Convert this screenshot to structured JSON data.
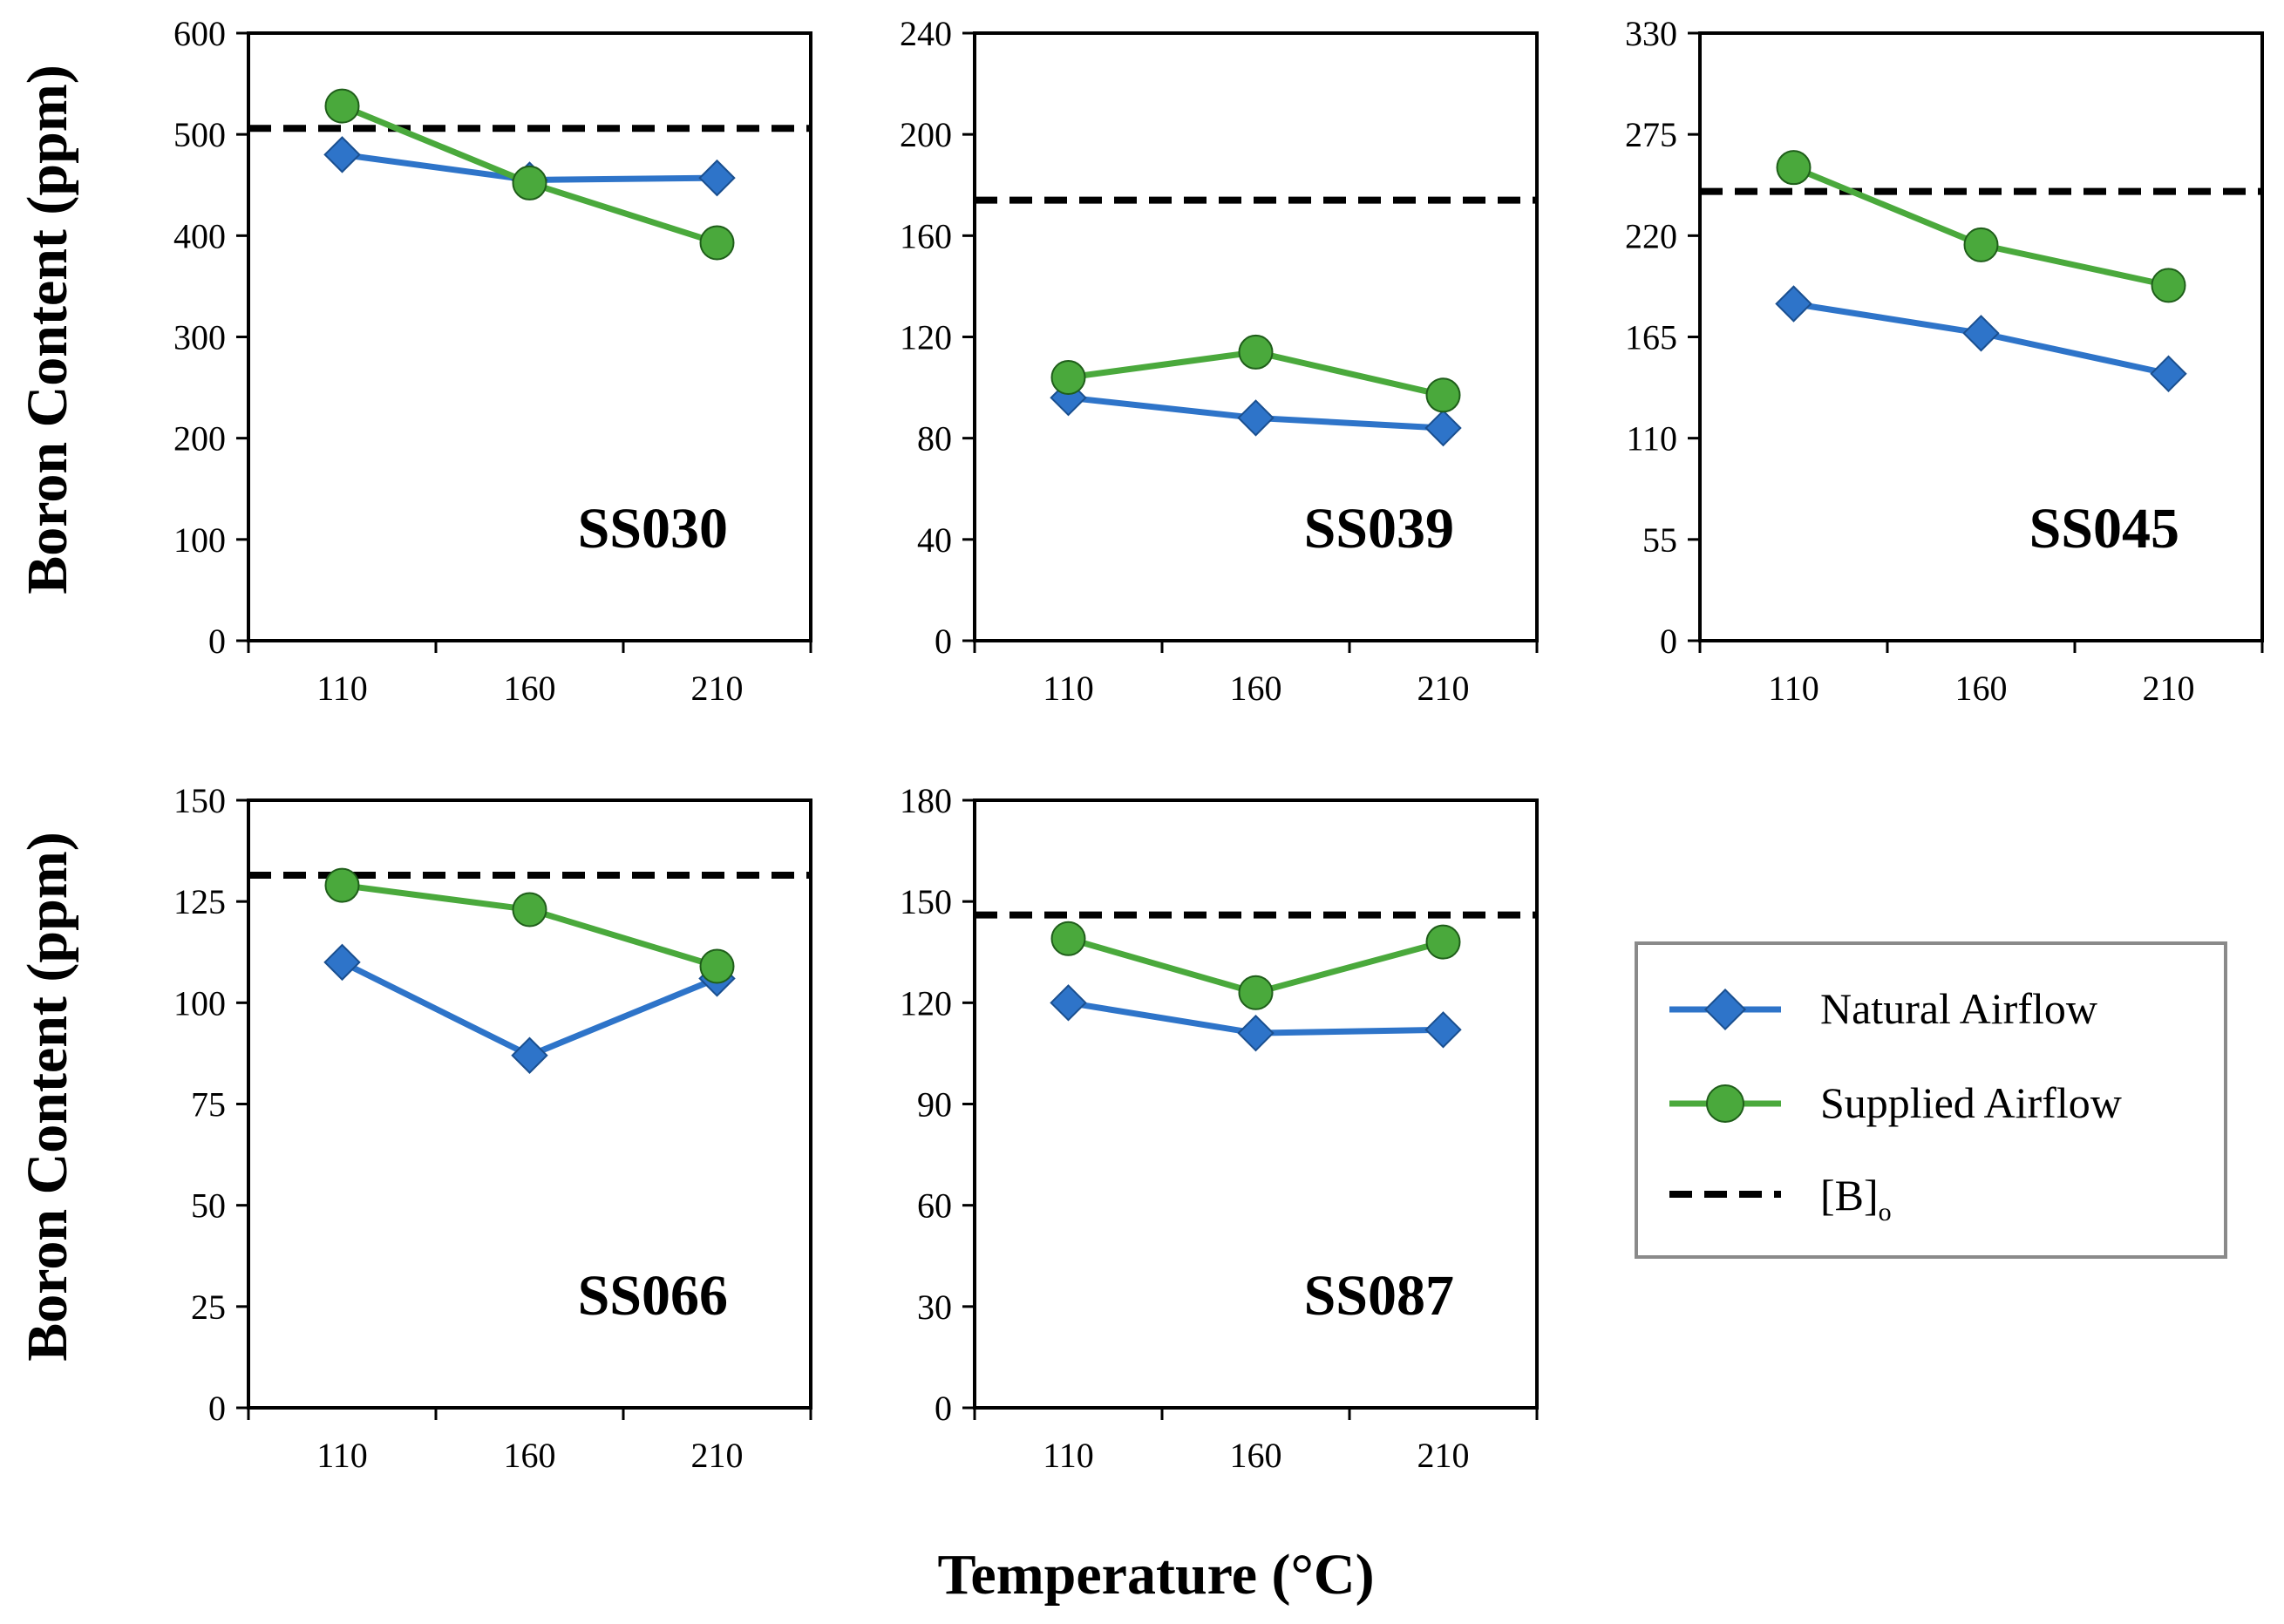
{
  "colors": {
    "natural": "#2e74c9",
    "natural_outline": "#1a4f8f",
    "supplied": "#4aa93c",
    "supplied_outline": "#1f5e1a",
    "baseline": "#000000",
    "legend_border": "#8a8a8a"
  },
  "axis_titles": {
    "y": "Boron Content (ppm)",
    "x": "Temperature (°C)"
  },
  "legend": {
    "natural": "Natural Airflow",
    "supplied": "Supplied Airflow",
    "baseline_main": "[B]",
    "baseline_sub": "o"
  },
  "chart_data": [
    {
      "type": "line",
      "label": "SS030",
      "categories": [
        "110",
        "160",
        "210"
      ],
      "ylim": [
        0,
        600
      ],
      "yticks": [
        0,
        100,
        200,
        300,
        400,
        500,
        600
      ],
      "series": [
        {
          "name": "Natural Airflow",
          "values": [
            480,
            455,
            457
          ]
        },
        {
          "name": "Supplied Airflow",
          "values": [
            528,
            452,
            393
          ]
        }
      ],
      "baseline": {
        "name": "[B]o",
        "value": 506
      }
    },
    {
      "type": "line",
      "label": "SS039",
      "categories": [
        "110",
        "160",
        "210"
      ],
      "ylim": [
        0,
        240
      ],
      "yticks": [
        0,
        40,
        80,
        120,
        160,
        200,
        240
      ],
      "series": [
        {
          "name": "Natural Airflow",
          "values": [
            96,
            88,
            84
          ]
        },
        {
          "name": "Supplied Airflow",
          "values": [
            104,
            114,
            97
          ]
        }
      ],
      "baseline": {
        "name": "[B]o",
        "value": 174
      }
    },
    {
      "type": "line",
      "label": "SS045",
      "categories": [
        "110",
        "160",
        "210"
      ],
      "ylim": [
        0,
        330
      ],
      "yticks": [
        0,
        55,
        110,
        165,
        220,
        275,
        330
      ],
      "series": [
        {
          "name": "Natural Airflow",
          "values": [
            183,
            167,
            145
          ]
        },
        {
          "name": "Supplied Airflow",
          "values": [
            257,
            215,
            193
          ]
        }
      ],
      "baseline": {
        "name": "[B]o",
        "value": 244
      }
    },
    {
      "type": "line",
      "label": "SS066",
      "categories": [
        "110",
        "160",
        "210"
      ],
      "ylim": [
        0,
        150
      ],
      "yticks": [
        0,
        25,
        50,
        75,
        100,
        125,
        150
      ],
      "series": [
        {
          "name": "Natural Airflow",
          "values": [
            110,
            87,
            106
          ]
        },
        {
          "name": "Supplied Airflow",
          "values": [
            129,
            123,
            109
          ]
        }
      ],
      "baseline": {
        "name": "[B]o",
        "value": 131.5
      }
    },
    {
      "type": "line",
      "label": "SS087",
      "categories": [
        "110",
        "160",
        "210"
      ],
      "ylim": [
        0,
        180
      ],
      "yticks": [
        0,
        30,
        60,
        90,
        120,
        150,
        180
      ],
      "series": [
        {
          "name": "Natural Airflow",
          "values": [
            120,
            111,
            112
          ]
        },
        {
          "name": "Supplied Airflow",
          "values": [
            139,
            123,
            138
          ]
        }
      ],
      "baseline": {
        "name": "[B]o",
        "value": 146
      }
    }
  ]
}
